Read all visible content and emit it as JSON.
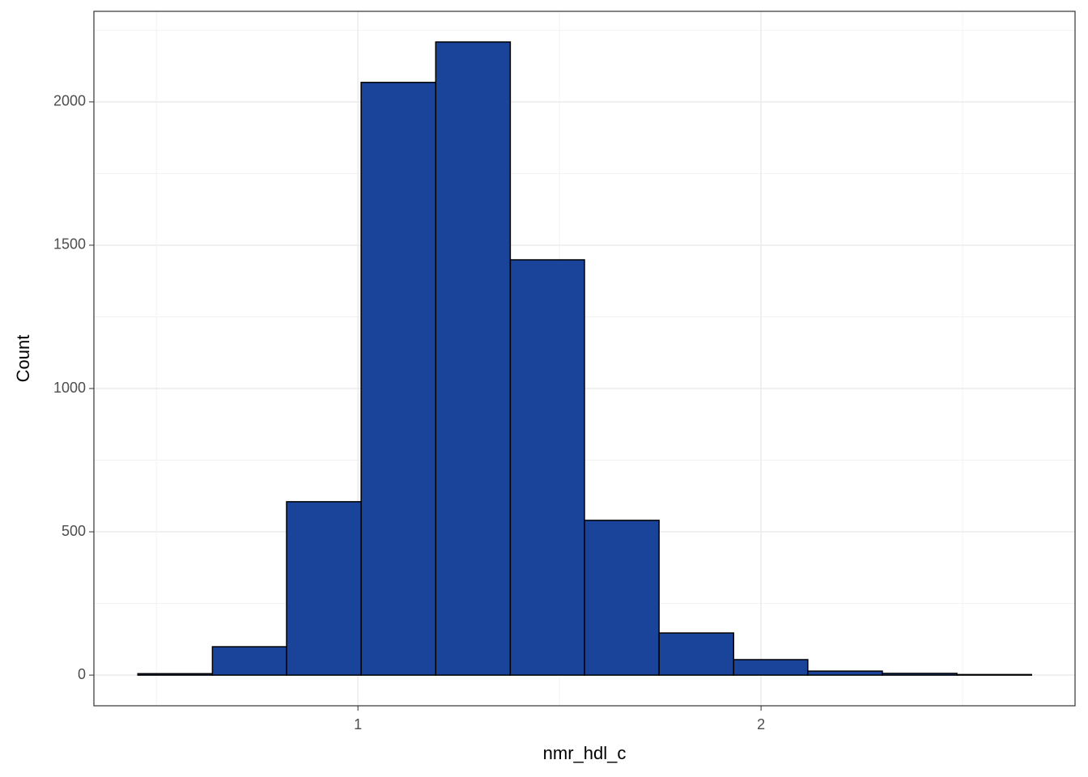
{
  "chart_data": {
    "type": "histogram",
    "x_label": "nmr_hdl_c",
    "y_label": "Count",
    "bins": [
      0.454,
      0.639,
      0.823,
      1.008,
      1.193,
      1.378,
      1.562,
      1.747,
      1.932,
      2.116,
      2.301,
      2.486,
      2.671
    ],
    "values": [
      5,
      99,
      605,
      2068,
      2209,
      1449,
      540,
      147,
      54,
      14,
      6,
      2
    ],
    "color": "#1a4499",
    "edge_color": "#000000",
    "xlim": [
      0.345,
      2.779
    ],
    "xticks": [
      1,
      2
    ],
    "ylim": [
      -107,
      2316
    ],
    "yticks": [
      0,
      500,
      1000,
      1500,
      2000
    ],
    "grid": true
  }
}
